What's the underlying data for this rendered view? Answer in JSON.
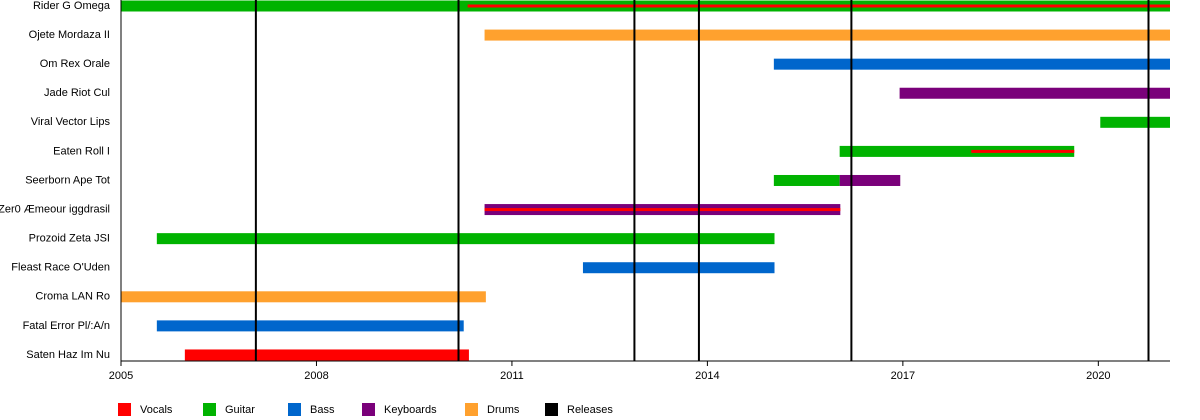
{
  "chart_data": {
    "type": "timeline",
    "categories": [
      "Rider G Omega",
      "Ojete Mordaza II",
      "Om Rex Orale",
      "Jade Riot Cul",
      "Viral Vector Lips",
      "Eaten Roll I",
      "Seerborn Ape Tot",
      "Zer0 Æmeour iggdrasil",
      "Prozoid Zeta JSI",
      "Fleast Race O'Uden",
      "Croma LAN Ro",
      "Fatal Error Pl/:A/n",
      "Saten Haz Im Nu"
    ],
    "series": [
      {
        "name": "Guitar",
        "color": "#00b300",
        "values": [
          [
            2005,
            2021.1
          ],
          null,
          null,
          null,
          [
            2020.03,
            2021.1
          ],
          [
            2016.03,
            2019.63
          ],
          [
            2015.02,
            2016.03
          ],
          null,
          [
            2005.55,
            2015.03
          ],
          null,
          null,
          null,
          null
        ]
      },
      {
        "name": "Bass",
        "color": "#0066cc",
        "values": [
          null,
          null,
          [
            2015.02,
            2021.1
          ],
          null,
          null,
          null,
          null,
          null,
          null,
          [
            2012.09,
            2015.03
          ],
          null,
          [
            2005.55,
            2010.26
          ],
          null
        ]
      },
      {
        "name": "Keyboards",
        "color": "#7a007a",
        "values": [
          null,
          null,
          null,
          [
            2016.95,
            2021.1
          ],
          null,
          null,
          [
            2016.03,
            2016.96
          ],
          [
            2010.58,
            2016.04
          ],
          null,
          null,
          null,
          null,
          null
        ]
      },
      {
        "name": "Drums",
        "color": "#ffa12e",
        "values": [
          null,
          [
            2010.58,
            2021.1
          ],
          null,
          null,
          null,
          null,
          null,
          null,
          null,
          null,
          [
            2005,
            2010.6
          ],
          null,
          null
        ]
      },
      {
        "name": "Vocals",
        "color": "#ff0000",
        "values": [
          [
            2010.32,
            2021.1
          ],
          null,
          null,
          null,
          null,
          [
            2018.05,
            2019.63
          ],
          null,
          [
            2010.58,
            2016.04
          ],
          null,
          null,
          null,
          null,
          [
            2005.98,
            2010.34
          ]
        ]
      }
    ],
    "legend_order": [
      "Vocals",
      "Guitar",
      "Bass",
      "Keyboards",
      "Drums",
      "Releases"
    ],
    "releases": {
      "name": "Releases",
      "color": "#000000",
      "values": [
        2007.07,
        2010.18,
        2012.88,
        2013.87,
        2016.21,
        2020.77
      ]
    },
    "xlim": [
      2005,
      2021.1
    ],
    "xticks": [
      2005,
      2008,
      2011,
      2014,
      2017,
      2020
    ]
  }
}
